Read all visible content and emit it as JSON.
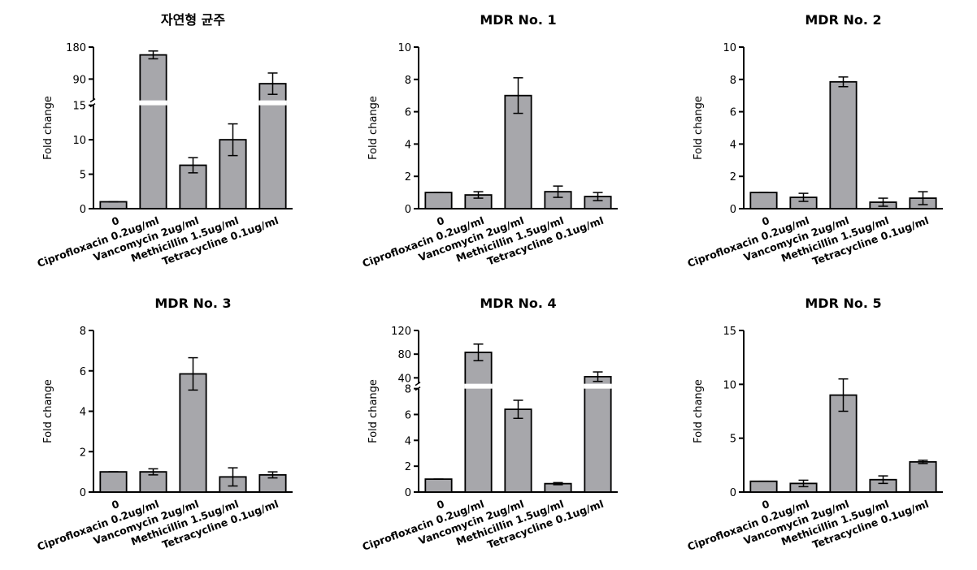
{
  "chart_data": [
    {
      "type": "bar",
      "title": "자연형 균주",
      "ylabel": "Fold change",
      "categories": [
        "0",
        "Ciprofloxacin 0.2ug/ml",
        "Vancomycin 2ug/ml",
        "Methicillin 1.5ug/ml",
        "Tetracycline 0.1ug/ml"
      ],
      "values": [
        1,
        158,
        6.3,
        10,
        77
      ],
      "errors": [
        0,
        11,
        1.1,
        2.3,
        30
      ],
      "color": "#a7a7ab",
      "ylim": [
        0,
        180
      ],
      "ybreak": [
        15,
        30
      ],
      "yticks": [
        0,
        5,
        10,
        15,
        90,
        180
      ]
    },
    {
      "type": "bar",
      "title": "MDR No. 1",
      "ylabel": "Fold change",
      "categories": [
        "0",
        "Ciprofloxacin 0.2ug/ml",
        "Vancomycin 2ug/ml",
        "Methicillin 1.5ug/ml",
        "Tetracycline 0.1ug/ml"
      ],
      "values": [
        1,
        0.85,
        7,
        1.05,
        0.75
      ],
      "errors": [
        0,
        0.2,
        1.1,
        0.35,
        0.25
      ],
      "color": "#a7a7ab",
      "ylim": [
        0,
        10
      ],
      "yticks": [
        0,
        2,
        4,
        6,
        8,
        10
      ]
    },
    {
      "type": "bar",
      "title": "MDR No. 2",
      "ylabel": "Fold change",
      "categories": [
        "0",
        "Ciprofloxacin 0.2ug/ml",
        "Vancomycin 2ug/ml",
        "Methicillin 1.5ug/ml",
        "Tetracycline 0.1ug/ml"
      ],
      "values": [
        1,
        0.7,
        7.85,
        0.4,
        0.65
      ],
      "errors": [
        0,
        0.25,
        0.3,
        0.25,
        0.4
      ],
      "color": "#a7a7ab",
      "ylim": [
        0,
        10
      ],
      "yticks": [
        0,
        2,
        4,
        6,
        8,
        10
      ]
    },
    {
      "type": "bar",
      "title": "MDR No. 3",
      "ylabel": "Fold change",
      "categories": [
        "0",
        "Ciprofloxacin 0.2ug/ml",
        "Vancomycin 2ug/ml",
        "Methicillin 1.5ug/ml",
        "Tetracycline 0.1ug/ml"
      ],
      "values": [
        1,
        1,
        5.85,
        0.75,
        0.85
      ],
      "errors": [
        0,
        0.15,
        0.8,
        0.45,
        0.15
      ],
      "color": "#a7a7ab",
      "ylim": [
        0,
        8
      ],
      "yticks": [
        0,
        2,
        4,
        6,
        8
      ]
    },
    {
      "type": "bar",
      "title": "MDR No. 4",
      "ylabel": "Fold change",
      "categories": [
        "0",
        "Ciprofloxacin 0.2ug/ml",
        "Vancomycin 2ug/ml",
        "Methicillin 1.5ug/ml",
        "Tetracycline 0.1ug/ml"
      ],
      "values": [
        1,
        83,
        6.4,
        0.65,
        42
      ],
      "errors": [
        0,
        14,
        0.7,
        0.08,
        8
      ],
      "color": "#a7a7ab",
      "ylim": [
        0,
        120
      ],
      "ybreak": [
        8,
        30
      ],
      "yticks": [
        0,
        2,
        4,
        6,
        8,
        40,
        80,
        120
      ]
    },
    {
      "type": "bar",
      "title": "MDR No. 5",
      "ylabel": "Fold change",
      "categories": [
        "0",
        "Ciprofloxacin 0.2ug/ml",
        "Vancomycin 2ug/ml",
        "Methicillin 1.5ug/ml",
        "Tetracycline 0.1ug/ml"
      ],
      "values": [
        1,
        0.8,
        9,
        1.15,
        2.8
      ],
      "errors": [
        0,
        0.3,
        1.5,
        0.35,
        0.15
      ],
      "color": "#a7a7ab",
      "ylim": [
        0,
        15
      ],
      "yticks": [
        0,
        5,
        10,
        15
      ]
    }
  ]
}
